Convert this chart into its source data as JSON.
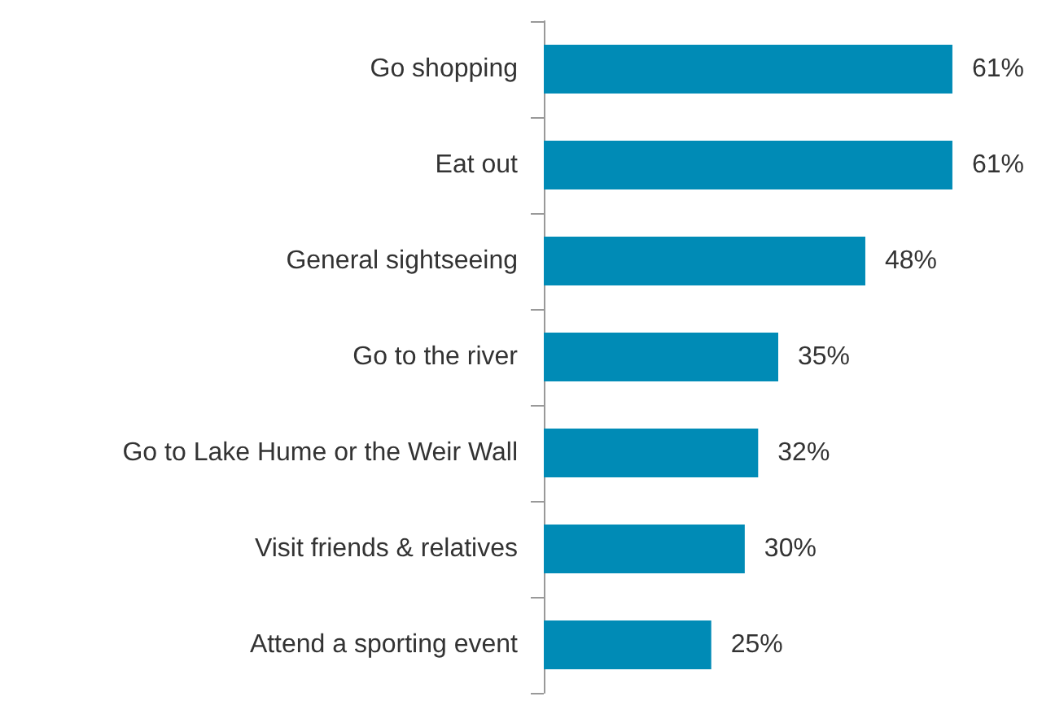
{
  "chart_data": {
    "type": "bar",
    "orientation": "horizontal",
    "categories": [
      "Go shopping",
      "Eat out",
      "General sightseeing",
      "Go to the river",
      "Go to Lake Hume or the Weir Wall",
      "Visit friends & relatives",
      "Attend a sporting event"
    ],
    "values": [
      61,
      61,
      48,
      35,
      32,
      30,
      25
    ],
    "value_labels": [
      "61%",
      "61%",
      "48%",
      "35%",
      "32%",
      "30%",
      "25%"
    ],
    "color": "#008bb6",
    "tick_labels": "y"
  }
}
